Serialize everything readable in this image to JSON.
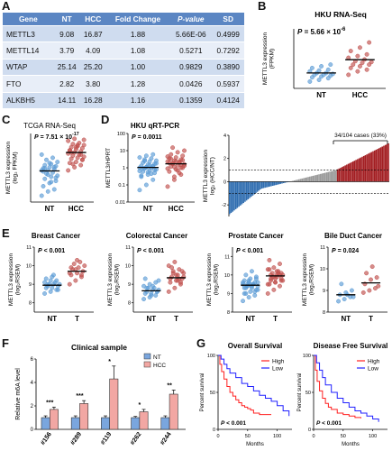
{
  "panel_labels": [
    "A",
    "B",
    "C",
    "D",
    "E",
    "F",
    "G"
  ],
  "table": {
    "headers": [
      "Gene",
      "NT",
      "HCC",
      "Fold Change",
      "P-value",
      "SD"
    ],
    "rows": [
      [
        "METTL3",
        "9.08",
        "16.87",
        "1.88",
        "5.66E-06",
        "0.4999"
      ],
      [
        "METTL14",
        "3.79",
        "4.09",
        "1.08",
        "0.5271",
        "0.7292"
      ],
      [
        "WTAP",
        "25.14",
        "25.20",
        "1.00",
        "0.9829",
        "0.3890"
      ],
      [
        "FTO",
        "2.82",
        "3.80",
        "1.28",
        "0.0426",
        "0.5937"
      ],
      [
        "ALKBH5",
        "14.11",
        "16.28",
        "1.16",
        "0.1359",
        "0.4124"
      ]
    ]
  },
  "colors": {
    "table_header": "#5b86c3",
    "table_row_a": "#cfdcef",
    "table_row_b": "#e8eef8",
    "normal": "#5b9bd5",
    "tumor": "#c0504d",
    "high": "#ff2020",
    "low": "#2020ff",
    "neutral": "#aaaaaa"
  },
  "chart_data": [
    {
      "id": "B",
      "type": "scatter",
      "title": "HKU RNA-Seq",
      "ylabel_lines": [
        "METTL3 expression",
        "(FPKM)"
      ],
      "pvalue": {
        "prefix": "P",
        "eq": " = 5.66 × 10",
        "exp": "-6"
      },
      "categories": [
        "NT",
        "HCC"
      ],
      "ylim": [
        0,
        35
      ],
      "series": [
        {
          "values": [
            4,
            5,
            6,
            6.5,
            7,
            7.5,
            8,
            8,
            8.5,
            9,
            9,
            10,
            10.5,
            11,
            12,
            13,
            14
          ]
        },
        {
          "values": [
            8,
            10,
            11,
            12,
            13,
            14,
            14,
            15,
            15.5,
            16,
            17,
            18,
            19,
            20,
            22,
            24,
            27
          ]
        }
      ],
      "means": [
        9.08,
        16.87
      ]
    },
    {
      "id": "C",
      "type": "scatter",
      "title": "TCGA RNA-Seq",
      "ylabel_lines": [
        "METTL3 expression",
        "(log₂ FPKM)"
      ],
      "pvalue": {
        "prefix": "P",
        "eq": " = 7.51 × 10",
        "exp": "-17"
      },
      "categories": [
        "NT",
        "HCC"
      ],
      "ylim": [
        -3,
        3.5
      ],
      "series": [
        {
          "values": [
            -2.4,
            -2,
            -1.8,
            -1.5,
            -1.2,
            -1,
            -0.8,
            -0.6,
            -0.5,
            -0.3,
            -0.2,
            0,
            0,
            0.1,
            0.2,
            0.3,
            0.4,
            0.5,
            0.6,
            0.8,
            1,
            1.2,
            1.5,
            -0.4,
            0.3,
            -0.1,
            0.7,
            -0.7,
            0.2,
            -1.1
          ]
        },
        {
          "values": [
            0,
            0.3,
            0.5,
            0.7,
            0.8,
            1,
            1.1,
            1.2,
            1.3,
            1.4,
            1.5,
            1.6,
            1.7,
            1.8,
            1.9,
            2,
            2.1,
            2.2,
            2.3,
            2.4,
            2.5,
            2.6,
            2.8,
            3,
            1.5,
            1.9,
            2.2,
            1,
            1.7,
            2.4,
            2.9,
            0.6
          ]
        }
      ],
      "means": [
        -0.05,
        1.7
      ]
    },
    {
      "id": "D1",
      "type": "scatter",
      "title": "HKU qRT-PCR",
      "ylabel_lines": [
        "METTL3/HPRT"
      ],
      "pvalue": {
        "prefix": "P",
        "eq": " = 0.0011",
        "exp": ""
      },
      "categories": [
        "NT",
        "HCC"
      ],
      "ylim": [
        0.01,
        100
      ],
      "log": true,
      "yticks": [
        {
          "v": 0.01,
          "t": "0.01"
        },
        {
          "v": 0.1,
          "t": "0.1"
        },
        {
          "v": 1,
          "t": "1"
        },
        {
          "v": 10,
          "t": "10"
        },
        {
          "v": 100,
          "t": "100"
        }
      ],
      "series": [
        {
          "values": [
            0.05,
            0.1,
            0.2,
            0.3,
            0.4,
            0.5,
            0.6,
            0.7,
            0.8,
            0.9,
            1,
            1,
            1.1,
            1.2,
            1.3,
            1.5,
            1.7,
            2,
            2.3,
            2.6,
            3,
            3.5,
            4,
            5,
            6,
            0.35,
            0.55,
            0.75,
            0.95,
            1.4,
            1.8,
            2.5,
            0.45,
            0.65,
            1.05,
            1.25
          ]
        },
        {
          "values": [
            0.08,
            0.2,
            0.4,
            0.6,
            0.8,
            1,
            1.2,
            1.4,
            1.6,
            1.8,
            2,
            2.3,
            2.6,
            3,
            3.5,
            4,
            5,
            6,
            8,
            10,
            15,
            0.5,
            0.9,
            1.1,
            1.5,
            1.9,
            2.4,
            2.8,
            3.3,
            0.7,
            1.3,
            1.7,
            2.2,
            4.5,
            0.3,
            1
          ]
        }
      ],
      "means": [
        1.05,
        1.7
      ]
    },
    {
      "id": "D2",
      "type": "bar",
      "title": "",
      "ylabel_lines": [
        "METTL3 expression",
        "log₂ (HCC/NT)"
      ],
      "annotation": "34/104 cases (33%)",
      "n": 104,
      "threshold": 1,
      "ylim": [
        -3,
        4
      ],
      "yticks": [
        -2,
        0,
        2,
        4
      ]
    },
    {
      "id": "E1",
      "type": "scatter",
      "title": "Breast Cancer",
      "ylabel_lines": [
        "METTL3 expression",
        "(log₂RSEM)"
      ],
      "pvalue": {
        "prefix": "P",
        "eq": " < 0.001",
        "exp": ""
      },
      "categories": [
        "NT",
        "T"
      ],
      "ylim": [
        7.5,
        11
      ],
      "yticks": [
        8,
        9,
        10,
        11
      ],
      "series": [
        {
          "values": [
            8.5,
            8.6,
            8.7,
            8.8,
            8.8,
            8.9,
            8.9,
            9,
            9,
            9,
            9.1,
            9.1,
            9.2,
            9.2,
            9.3,
            9.4,
            8.7,
            9,
            9.5
          ]
        },
        {
          "values": [
            9,
            9.2,
            9.4,
            9.5,
            9.6,
            9.7,
            9.8,
            9.9,
            10,
            10.1,
            10.2,
            9.6,
            9.8,
            9.5,
            9.9,
            10.3
          ]
        }
      ],
      "means": [
        8.95,
        9.7
      ]
    },
    {
      "id": "E2",
      "type": "scatter",
      "title": "Colorectal Cancer",
      "ylabel_lines": [
        "METTL3 expression",
        "(log₂RSEM)"
      ],
      "pvalue": {
        "prefix": "P",
        "eq": " < 0.001",
        "exp": ""
      },
      "categories": [
        "NT",
        "T"
      ],
      "ylim": [
        7.5,
        11
      ],
      "yticks": [
        8,
        9,
        10,
        11
      ],
      "series": [
        {
          "values": [
            8.2,
            8.3,
            8.4,
            8.5,
            8.5,
            8.6,
            8.6,
            8.7,
            8.7,
            8.8,
            8.8,
            8.9,
            9,
            9.1,
            9.3,
            8.4,
            8.6,
            8.8,
            8.9,
            9.2
          ]
        },
        {
          "values": [
            8.6,
            8.8,
            9,
            9.1,
            9.2,
            9.3,
            9.4,
            9.5,
            9.6,
            9.7,
            9.8,
            10,
            10.2,
            9.1,
            9.3,
            9.5,
            9.7,
            9.9,
            9.2,
            9.4,
            9.6,
            9.3
          ]
        }
      ],
      "means": [
        8.65,
        9.35
      ]
    },
    {
      "id": "E3",
      "type": "scatter",
      "title": "Prostate Cancer",
      "ylabel_lines": [
        "METTL3 expression",
        "(log₂RSEM)"
      ],
      "pvalue": {
        "prefix": "P",
        "eq": " < 0.001",
        "exp": ""
      },
      "categories": [
        "NT",
        "T"
      ],
      "ylim": [
        8,
        11.5
      ],
      "yticks": [
        8,
        9,
        10,
        11
      ],
      "series": [
        {
          "values": [
            8.6,
            8.8,
            8.9,
            9,
            9.1,
            9.2,
            9.3,
            9.3,
            9.4,
            9.4,
            9.5,
            9.5,
            9.6,
            9.6,
            9.7,
            9.8,
            9.9,
            10,
            10.2,
            9.2,
            9.4,
            9.5,
            9.6,
            9.7,
            9.1,
            9.3,
            9.5,
            9.8,
            9,
            9.4,
            9.6,
            9.5
          ]
        },
        {
          "values": [
            9,
            9.2,
            9.4,
            9.5,
            9.6,
            9.7,
            9.8,
            9.9,
            10,
            10.1,
            10.2,
            10.3,
            10.4,
            10.6,
            10.8,
            9.6,
            9.8,
            10,
            10.2,
            9.7,
            9.9,
            10.1,
            9.5,
            9.9,
            10,
            10.3,
            9.8,
            10.1,
            9.7,
            10
          ]
        }
      ],
      "means": [
        9.45,
        9.95
      ]
    },
    {
      "id": "E4",
      "type": "scatter",
      "title": "Bile Duct Cancer",
      "ylabel_lines": [
        "METTL3 expression",
        "(log₂RSEM)"
      ],
      "pvalue": {
        "prefix": "P",
        "eq": " = 0.024",
        "exp": ""
      },
      "categories": [
        "NT",
        "T"
      ],
      "ylim": [
        8,
        11
      ],
      "yticks": [
        8,
        9,
        10,
        11
      ],
      "series": [
        {
          "values": [
            8.5,
            8.6,
            8.7,
            8.8,
            8.9,
            9,
            9.3,
            8.8,
            8.7
          ]
        },
        {
          "values": [
            8.9,
            9,
            9.1,
            9.3,
            9.5,
            9.6,
            9.8,
            10.1,
            9.2
          ]
        }
      ],
      "means": [
        8.8,
        9.35
      ]
    },
    {
      "id": "F",
      "type": "bar",
      "title": "Clinical sample",
      "ylabel": "Relative m6A level",
      "categories": [
        "#156",
        "#289",
        "#119",
        "#262",
        "#244"
      ],
      "series": [
        {
          "name": "NT",
          "values": [
            1,
            1,
            1,
            1,
            1
          ],
          "err": [
            0.15,
            0.15,
            0.15,
            0.1,
            0.15
          ]
        },
        {
          "name": "HCC",
          "values": [
            1.7,
            2.2,
            4.3,
            1.5,
            3
          ],
          "err": [
            0.2,
            0.25,
            1.1,
            0.2,
            0.35
          ]
        }
      ],
      "sig": [
        "***",
        "***",
        "*",
        "*",
        "**"
      ],
      "ylim": [
        0,
        6
      ],
      "yticks": [
        0,
        2,
        4,
        6
      ]
    },
    {
      "id": "G1",
      "type": "line",
      "title": "Overall Survival",
      "ylabel": "Percent survival",
      "xlabel": "Months",
      "legend": [
        "High",
        "Low"
      ],
      "pvalue": {
        "prefix": "P",
        "eq": " < 0.001",
        "exp": ""
      },
      "xlim": [
        0,
        125
      ],
      "ylim": [
        0,
        100
      ],
      "xticks": [
        0,
        50,
        100
      ],
      "yticks": [
        0,
        50,
        100
      ],
      "series": [
        {
          "name": "High",
          "x": [
            0,
            3,
            6,
            10,
            15,
            20,
            25,
            30,
            35,
            40,
            45,
            50,
            55,
            60,
            70,
            80,
            90
          ],
          "y": [
            100,
            88,
            78,
            68,
            58,
            50,
            45,
            40,
            36,
            32,
            30,
            28,
            26,
            22,
            20,
            20,
            20
          ]
        },
        {
          "name": "Low",
          "x": [
            0,
            5,
            10,
            15,
            20,
            30,
            40,
            50,
            60,
            70,
            80,
            90,
            100,
            110,
            120
          ],
          "y": [
            100,
            95,
            88,
            82,
            76,
            70,
            62,
            58,
            52,
            46,
            42,
            38,
            32,
            25,
            18
          ]
        }
      ]
    },
    {
      "id": "G2",
      "type": "line",
      "title": "Disease Free Survival",
      "ylabel": "Percent survival",
      "xlabel": "Months",
      "legend": [
        "High",
        "Low"
      ],
      "pvalue": {
        "prefix": "P",
        "eq": " < 0.001",
        "exp": ""
      },
      "xlim": [
        0,
        125
      ],
      "ylim": [
        0,
        100
      ],
      "xticks": [
        0,
        50,
        100
      ],
      "yticks": [
        0,
        50,
        100
      ],
      "series": [
        {
          "name": "High",
          "x": [
            0,
            3,
            6,
            10,
            15,
            20,
            25,
            30,
            40,
            50,
            60,
            70,
            80
          ],
          "y": [
            100,
            80,
            65,
            52,
            42,
            35,
            30,
            27,
            22,
            20,
            18,
            16,
            15
          ]
        },
        {
          "name": "Low",
          "x": [
            0,
            5,
            10,
            15,
            20,
            30,
            40,
            50,
            60,
            70,
            80,
            90,
            100,
            110
          ],
          "y": [
            100,
            90,
            80,
            70,
            60,
            50,
            42,
            36,
            30,
            25,
            22,
            18,
            14,
            10
          ]
        }
      ]
    }
  ]
}
